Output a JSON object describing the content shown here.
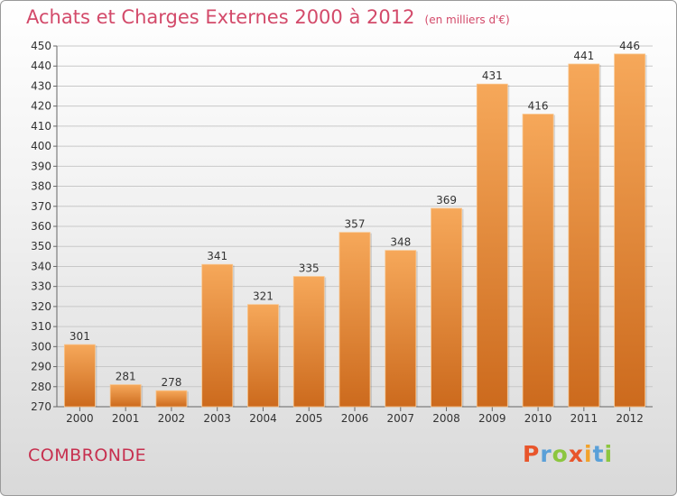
{
  "header": {
    "title": "Achats et Charges Externes 2000 à 2012",
    "unit": "(en milliers d'€)"
  },
  "location": {
    "name": "COMBRONDE"
  },
  "logo": {
    "text": "Proxiti",
    "letters": [
      {
        "char": "P",
        "color": "#e8552b"
      },
      {
        "char": "r",
        "color": "#5aa0d8"
      },
      {
        "char": "o",
        "color": "#8cc63f"
      },
      {
        "char": "x",
        "color": "#e8552b"
      },
      {
        "char": "i",
        "color": "#f2a22a"
      },
      {
        "char": "t",
        "color": "#5aa0d8"
      },
      {
        "char": "i",
        "color": "#8cc63f"
      }
    ]
  },
  "colors": {
    "bar_top": "#f6a85a",
    "bar_bottom": "#cc6a1d",
    "grid": "#c8c8c8",
    "title": "#d34a6a"
  },
  "chart_data": {
    "type": "bar",
    "title": "Achats et Charges Externes 2000 à 2012",
    "subtitle": "(en milliers d'€)",
    "categories": [
      "2000",
      "2001",
      "2002",
      "2003",
      "2004",
      "2005",
      "2006",
      "2007",
      "2008",
      "2009",
      "2010",
      "2011",
      "2012"
    ],
    "values": [
      301,
      281,
      278,
      341,
      321,
      335,
      357,
      348,
      369,
      431,
      416,
      441,
      446
    ],
    "ylim": [
      270,
      450
    ],
    "ytick_step": 10,
    "grid": true,
    "xlabel": "",
    "ylabel": ""
  }
}
